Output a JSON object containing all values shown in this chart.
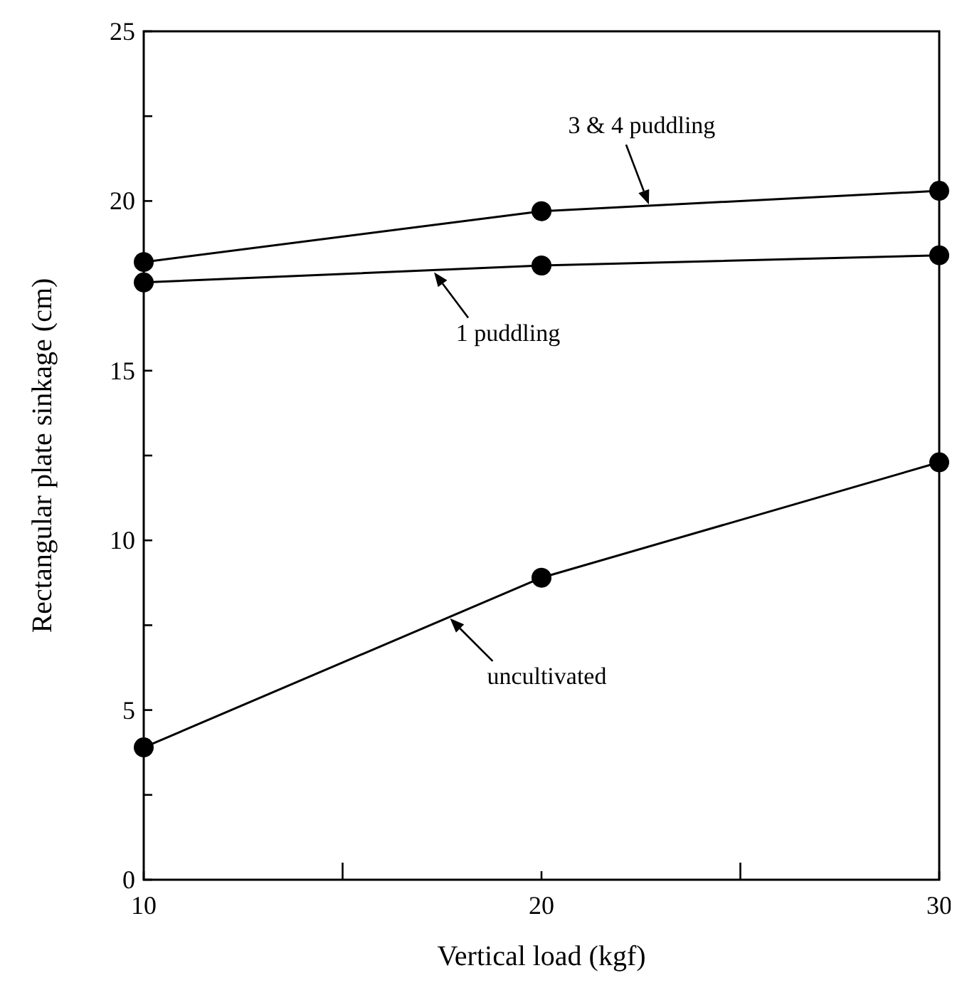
{
  "chart_data": {
    "type": "line",
    "xlabel": "Vertical load (kgf)",
    "ylabel": "Rectangular plate sinkage (cm)",
    "x": [
      10,
      20,
      30
    ],
    "series": [
      {
        "color": "#000000",
        "values": [
          18.2,
          19.7,
          20.3
        ]
      },
      {
        "color": "#000000",
        "values": [
          17.6,
          18.1,
          18.4
        ]
      },
      {
        "color": "#000000",
        "values": [
          3.9,
          8.9,
          12.3
        ]
      }
    ],
    "annotations": [
      {
        "text": "3 & 4 puddling",
        "x": 22.7,
        "y": 19.9
      },
      {
        "text": "1 puddling",
        "x": 17.3,
        "y": 17.9
      },
      {
        "text": "uncultivated",
        "x": 17.7,
        "y": 7.7
      }
    ],
    "xlim": [
      10,
      30
    ],
    "xticks": [
      10,
      {
        "value": 15,
        "label": null
      },
      20,
      {
        "value": 25,
        "label": null
      },
      30
    ],
    "ylim": [
      0,
      25
    ],
    "yticks": [
      0,
      {
        "value": 2.5,
        "label": null
      },
      5,
      {
        "value": 7.5,
        "label": null
      },
      10,
      {
        "value": 12.5,
        "label": null
      },
      15,
      {
        "value": 17.5,
        "label": null
      },
      20,
      {
        "value": 22.5,
        "label": null
      },
      25
    ],
    "grid": false,
    "marker": "circle",
    "line_style": "solid"
  }
}
